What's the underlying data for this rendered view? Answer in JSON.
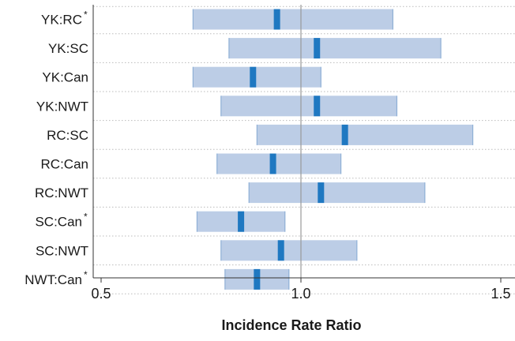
{
  "chart_data": {
    "type": "interval",
    "xlabel": "Incidence Rate Ratio",
    "xlim": [
      0.45,
      1.53
    ],
    "xticks": [
      {
        "value": 0.5,
        "label": "0.5"
      },
      {
        "value": 1.0,
        "label": "1.0"
      },
      {
        "value": 1.5,
        "label": "1.5"
      }
    ],
    "reference_line": 1.0,
    "grid": "horizontal dotted",
    "colors": {
      "interval": "#bccde6",
      "interval_edge": "#8fb0d6",
      "estimate": "#1f78c1",
      "reference": "#999999"
    },
    "rows": [
      {
        "label": "YK:RC",
        "asterisk": "*",
        "low": 0.73,
        "estimate": 0.94,
        "high": 1.23
      },
      {
        "label": "YK:SC",
        "asterisk": "",
        "low": 0.82,
        "estimate": 1.04,
        "high": 1.35
      },
      {
        "label": "YK:Can",
        "asterisk": "",
        "low": 0.73,
        "estimate": 0.88,
        "high": 1.05
      },
      {
        "label": "YK:NWT",
        "asterisk": "",
        "low": 0.8,
        "estimate": 1.04,
        "high": 1.24
      },
      {
        "label": "RC:SC",
        "asterisk": "",
        "low": 0.89,
        "estimate": 1.11,
        "high": 1.43
      },
      {
        "label": "RC:Can",
        "asterisk": "",
        "low": 0.79,
        "estimate": 0.93,
        "high": 1.1
      },
      {
        "label": "RC:NWT",
        "asterisk": "",
        "low": 0.87,
        "estimate": 1.05,
        "high": 1.31
      },
      {
        "label": "SC:Can",
        "asterisk": "*",
        "low": 0.74,
        "estimate": 0.85,
        "high": 0.96
      },
      {
        "label": "SC:NWT",
        "asterisk": "",
        "low": 0.8,
        "estimate": 0.95,
        "high": 1.14
      },
      {
        "label": "NWT:Can",
        "asterisk": "*",
        "low": 0.81,
        "estimate": 0.89,
        "high": 0.97
      }
    ]
  }
}
